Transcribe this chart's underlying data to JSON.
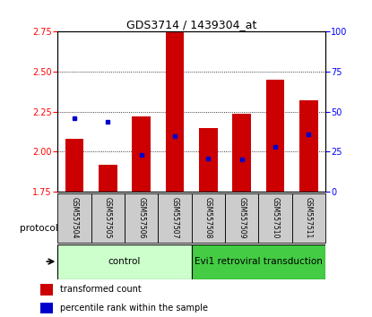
{
  "title": "GDS3714 / 1439304_at",
  "samples": [
    "GSM557504",
    "GSM557505",
    "GSM557506",
    "GSM557507",
    "GSM557508",
    "GSM557509",
    "GSM557510",
    "GSM557511"
  ],
  "transformed_count": [
    2.08,
    1.92,
    2.22,
    2.87,
    2.15,
    2.24,
    2.45,
    2.32
  ],
  "percentile_rank_pct": [
    46,
    44,
    23,
    35,
    21,
    20,
    28,
    36
  ],
  "ylim_left": [
    1.75,
    2.75
  ],
  "ylim_right": [
    0,
    100
  ],
  "yticks_left": [
    1.75,
    2.0,
    2.25,
    2.5,
    2.75
  ],
  "yticks_right": [
    0,
    25,
    50,
    75,
    100
  ],
  "bar_color": "#cc0000",
  "percentile_color": "#0000cc",
  "control_label": "control",
  "transduction_label": "Evi1 retroviral transduction",
  "control_bg": "#ccffcc",
  "transduction_bg": "#44cc44",
  "protocol_label": "protocol",
  "legend_bar": "transformed count",
  "legend_pct": "percentile rank within the sample",
  "xticklabel_bg": "#cccccc",
  "fig_width": 4.15,
  "fig_height": 3.54
}
